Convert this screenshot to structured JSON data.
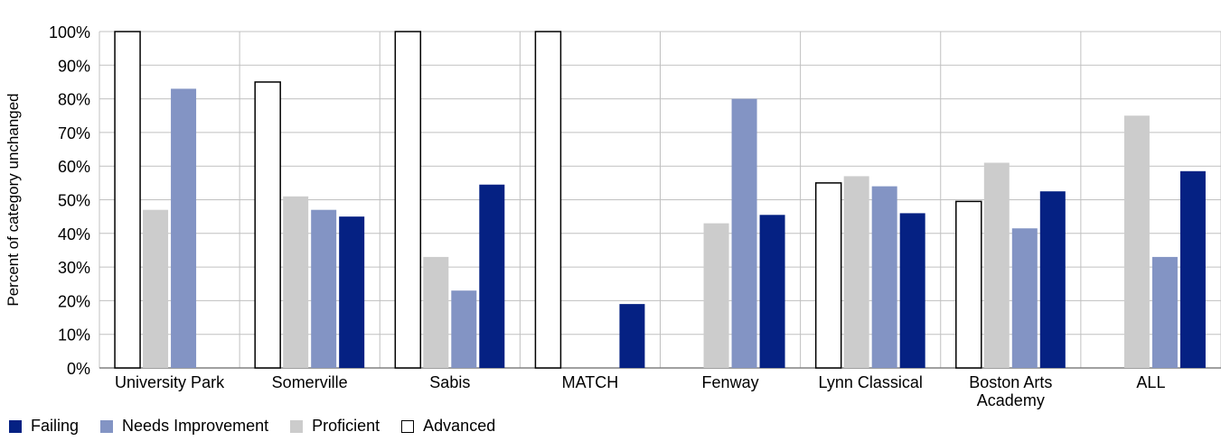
{
  "chart_data": {
    "type": "bar",
    "title": "",
    "xlabel": "",
    "ylabel": "Percent of category unchanged",
    "ylim": [
      0,
      100
    ],
    "yticks": [
      "0%",
      "10%",
      "20%",
      "30%",
      "40%",
      "50%",
      "60%",
      "70%",
      "80%",
      "90%",
      "100%"
    ],
    "grid": true,
    "legend_position": "bottom-left",
    "categories": [
      [
        "University Park"
      ],
      [
        "Somerville"
      ],
      [
        "Sabis"
      ],
      [
        "MATCH"
      ],
      [
        "Fenway"
      ],
      [
        "Lynn Classical"
      ],
      [
        "Boston Arts",
        "Academy"
      ],
      [
        "ALL"
      ]
    ],
    "series": [
      {
        "name": "Advanced",
        "color": "#ffffff",
        "stroke": "#000000",
        "values": [
          100,
          85,
          100,
          100,
          null,
          55,
          49.5,
          null
        ]
      },
      {
        "name": "Proficient",
        "color": "#cccccc",
        "values": [
          47,
          51,
          33,
          null,
          43,
          57,
          61,
          75
        ]
      },
      {
        "name": "Needs Improvement",
        "color": "#8394c4",
        "values": [
          83,
          47,
          23,
          null,
          80,
          54,
          41.5,
          33
        ]
      },
      {
        "name": "Failing",
        "color": "#052183",
        "values": [
          null,
          45,
          54.5,
          19,
          45.5,
          46,
          52.5,
          58.5
        ]
      }
    ]
  },
  "legend": [
    {
      "label": "Failing",
      "color": "#052183",
      "border": "#052183"
    },
    {
      "label": "Needs Improvement",
      "color": "#8394c4",
      "border": "#8394c4"
    },
    {
      "label": "Proficient",
      "color": "#cccccc",
      "border": "#cccccc"
    },
    {
      "label": "Advanced",
      "color": "#ffffff",
      "border": "#000000"
    }
  ]
}
